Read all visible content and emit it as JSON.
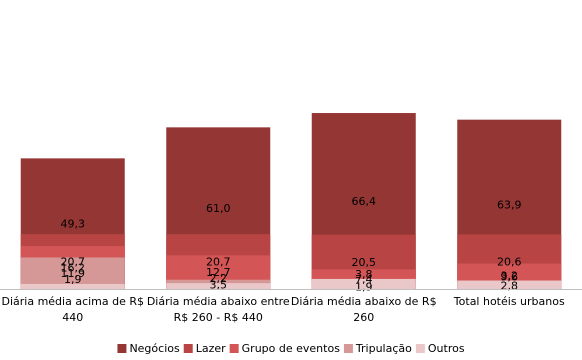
{
  "chart_data": {
    "type": "bar",
    "stacked": true,
    "percent_stacked": true,
    "title": "",
    "xlabel": "",
    "ylabel": "",
    "ylim": [
      0,
      100
    ],
    "grid": false,
    "legend_position": "bottom",
    "categories": [
      [
        "Diária média acima de R$",
        "440"
      ],
      [
        "Diária média abaixo entre",
        "R$ 260 - R$ 440"
      ],
      [
        "Diária média abaixo de R$",
        "260"
      ],
      [
        "Total hotéis urbanos"
      ]
    ],
    "series": [
      {
        "name": "Negócios",
        "color": "#943634",
        "values": [
          49.3,
          61.0,
          66.4,
          63.9
        ],
        "labels": [
          "49,3",
          "61,0",
          "66,4",
          "63,9"
        ]
      },
      {
        "name": "Lazer",
        "color": "#b84544",
        "values": [
          20.7,
          20.7,
          20.5,
          20.6
        ],
        "labels": [
          "20,7",
          "20,7",
          "20,5",
          "20,6"
        ]
      },
      {
        "name": "Grupo de eventos",
        "color": "#d45556",
        "values": [
          16.2,
          12.7,
          7.4,
          9.6
        ],
        "labels": [
          "16,2",
          "12,7",
          "7,4",
          "9,6"
        ]
      },
      {
        "name": "Tripulação",
        "color": "#d59897",
        "values": [
          11.9,
          3.5,
          1.9,
          2.8
        ],
        "labels": [
          "11,9",
          "3,5",
          "1,9",
          "2,8"
        ]
      },
      {
        "name": "Outros",
        "color": "#eac8c9",
        "values": [
          1.9,
          2.2,
          3.8,
          3.2
        ],
        "labels": [
          "1,9",
          "2,2",
          "3,8",
          "3,2"
        ]
      }
    ]
  }
}
